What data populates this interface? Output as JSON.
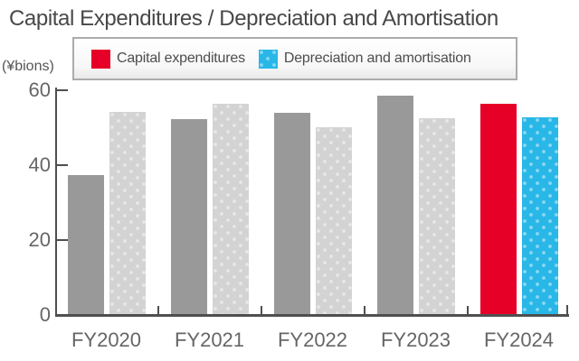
{
  "title": "Capital Expenditures / Depreciation and Amortisation",
  "y_axis_unit": "(¥bions)",
  "legend": {
    "items": [
      {
        "label": "Capital expenditures",
        "color": "#e60027"
      },
      {
        "label": "Depreciation and amortisation",
        "color": "#29b7e8"
      }
    ]
  },
  "chart_data": {
    "type": "bar",
    "title": "Capital Expenditures / Depreciation and Amortisation",
    "ylabel": "(¥bions)",
    "categories": [
      "FY2020",
      "FY2021",
      "FY2022",
      "FY2023",
      "FY2024"
    ],
    "series": [
      {
        "name": "Capital expenditures",
        "values": [
          37.3,
          52.2,
          54.0,
          58.5,
          56.5
        ],
        "color": "#999999",
        "highlight_color": "#e60027",
        "pattern": "solid"
      },
      {
        "name": "Depreciation and amortisation",
        "values": [
          54.3,
          56.4,
          50.0,
          52.5,
          52.7
        ],
        "color": "#d3d3d3",
        "highlight_color": "#29b7e8",
        "pattern": "dots"
      }
    ],
    "highlight_category": "FY2024",
    "ylim": [
      0,
      60
    ],
    "yticks": [
      0,
      20,
      40,
      60
    ],
    "grid": false,
    "legend_position": "top"
  }
}
